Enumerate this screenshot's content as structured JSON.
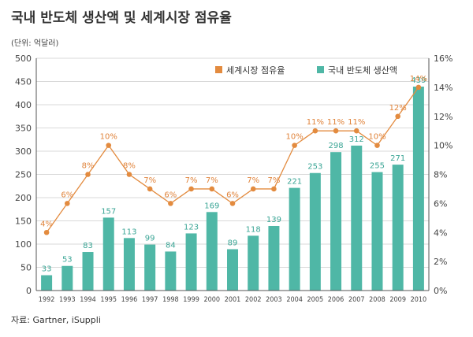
{
  "header": {
    "title": "국내 반도체 생산액 및 세계시장 점유율",
    "unit": "(단위: 억달러)",
    "source": "자료: Gartner, iSuppli"
  },
  "colors": {
    "bar": "#4fb7a6",
    "line": "#e38b3f",
    "grid": "#d9d9d9",
    "axis": "#555555"
  },
  "chart_data": {
    "type": "bar",
    "title": "국내 반도체 생산액 및 세계시장 점유율",
    "categories": [
      "1992",
      "1993",
      "1994",
      "1995",
      "1996",
      "1997",
      "1998",
      "1999",
      "2000",
      "2001",
      "2002",
      "2003",
      "2004",
      "2005",
      "2006",
      "2007",
      "2008",
      "2009",
      "2010"
    ],
    "series": [
      {
        "name": "국내 반도체 생산액",
        "type": "bar",
        "axis": "left",
        "values": [
          33,
          53,
          83,
          157,
          113,
          99,
          84,
          123,
          169,
          89,
          118,
          139,
          221,
          253,
          298,
          312,
          255,
          271,
          439
        ]
      },
      {
        "name": "세계시장 점유율",
        "type": "line",
        "axis": "right",
        "values": [
          4,
          6,
          8,
          10,
          8,
          7,
          6,
          7,
          7,
          6,
          7,
          7,
          10,
          11,
          11,
          11,
          10,
          12,
          14
        ],
        "labels": [
          "4%",
          "6%",
          "8%",
          "10%",
          "8%",
          "7%",
          "6%",
          "7%",
          "7%",
          "6%",
          "7%",
          "7%",
          "10%",
          "11%",
          "11%",
          "11%",
          "10%",
          "12%",
          "14%"
        ]
      }
    ],
    "ylim_left": [
      0,
      500
    ],
    "yticks_left": [
      "0",
      "50",
      "100",
      "150",
      "200",
      "250",
      "300",
      "350",
      "400",
      "450",
      "500"
    ],
    "ylim_right": [
      0,
      16
    ],
    "yticks_right": [
      "0%",
      "2%",
      "4%",
      "6%",
      "8%",
      "10%",
      "12%",
      "14%",
      "16%"
    ],
    "grid": true,
    "legend_position": "top-right",
    "legend": [
      "세계시장 점유율",
      "국내 반도체 생산액"
    ]
  }
}
